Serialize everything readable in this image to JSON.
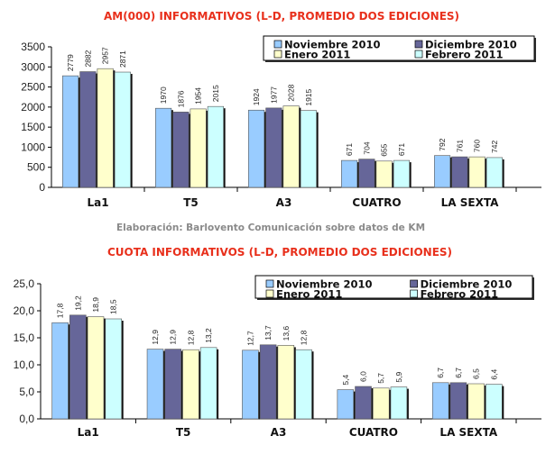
{
  "colors": [
    "#99ccff",
    "#666699",
    "#ffffcc",
    "#ccffff"
  ],
  "subtitle": "Elaboración: Barlovento Comunicación sobre datos de KM",
  "chart_data": [
    {
      "type": "bar",
      "title": "AM(000) INFORMATIVOS (L-D, PROMEDIO DOS EDICIONES)",
      "categories": [
        "La1",
        "T5",
        "A3",
        "CUATRO",
        "LA SEXTA"
      ],
      "ylim": [
        0,
        3500
      ],
      "yticks": [
        "0",
        "500",
        "1000",
        "1500",
        "2000",
        "2500",
        "3000",
        "3500"
      ],
      "grid": false,
      "legend": "top-right",
      "series": [
        {
          "name": "Noviembre 2010",
          "values": [
            2779,
            1970,
            1924,
            671,
            792
          ],
          "labels": [
            "2779",
            "1970",
            "1924",
            "671",
            "792"
          ]
        },
        {
          "name": "Diciembre 2010",
          "values": [
            2882,
            1876,
            1977,
            704,
            761
          ],
          "labels": [
            "2882",
            "1876",
            "1977",
            "704",
            "761"
          ]
        },
        {
          "name": "Enero 2011",
          "values": [
            2957,
            1954,
            2028,
            655,
            760
          ],
          "labels": [
            "2957",
            "1954",
            "2028",
            "655",
            "760"
          ]
        },
        {
          "name": "Febrero 2011",
          "values": [
            2871,
            2015,
            1915,
            671,
            742
          ],
          "labels": [
            "2871",
            "2015",
            "1915",
            "671",
            "742"
          ]
        }
      ]
    },
    {
      "type": "bar",
      "title": "CUOTA INFORMATIVOS (L-D, PROMEDIO DOS EDICIONES)",
      "categories": [
        "La1",
        "T5",
        "A3",
        "CUATRO",
        "LA SEXTA"
      ],
      "ylim": [
        0,
        25
      ],
      "yticks": [
        "0,0",
        "5,0",
        "10,0",
        "15,0",
        "20,0",
        "25,0"
      ],
      "grid": false,
      "legend": "top-right",
      "series": [
        {
          "name": "Noviembre 2010",
          "values": [
            17.8,
            12.9,
            12.7,
            5.4,
            6.7
          ],
          "labels": [
            "17,8",
            "12,9",
            "12,7",
            "5,4",
            "6,7"
          ]
        },
        {
          "name": "Diciembre 2010",
          "values": [
            19.2,
            12.9,
            13.7,
            6.0,
            6.7
          ],
          "labels": [
            "19,2",
            "12,9",
            "13,7",
            "6,0",
            "6,7"
          ]
        },
        {
          "name": "Enero 2011",
          "values": [
            18.9,
            12.8,
            13.6,
            5.7,
            6.5
          ],
          "labels": [
            "18,9",
            "12,8",
            "13,6",
            "5,7",
            "6,5"
          ]
        },
        {
          "name": "Febrero 2011",
          "values": [
            18.5,
            13.2,
            12.8,
            5.9,
            6.4
          ],
          "labels": [
            "18,5",
            "13,2",
            "12,8",
            "5,9",
            "6,4"
          ]
        }
      ]
    }
  ]
}
